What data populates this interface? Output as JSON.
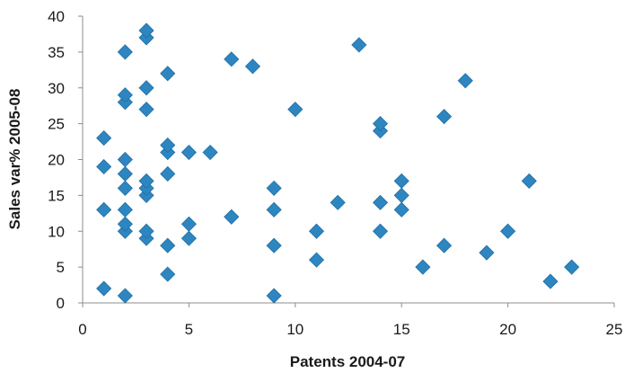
{
  "chart_data": {
    "type": "scatter",
    "xlabel": "Patents 2004-07",
    "ylabel": "Sales var% 2005-08",
    "xlim": [
      0,
      25
    ],
    "ylim": [
      0,
      40
    ],
    "x_ticks": [
      "0",
      "5",
      "10",
      "15",
      "20",
      "25"
    ],
    "y_ticks": [
      "0",
      "5",
      "10",
      "15",
      "20",
      "25",
      "30",
      "35",
      "40"
    ],
    "grid": false,
    "legend": "none",
    "marker": "diamond",
    "marker_color": "#2e86c1",
    "series": [
      {
        "points": [
          {
            "x": 1,
            "y": 2
          },
          {
            "x": 1,
            "y": 13
          },
          {
            "x": 1,
            "y": 19
          },
          {
            "x": 1,
            "y": 23
          },
          {
            "x": 2,
            "y": 1
          },
          {
            "x": 2,
            "y": 10
          },
          {
            "x": 2,
            "y": 11
          },
          {
            "x": 2,
            "y": 13
          },
          {
            "x": 2,
            "y": 16
          },
          {
            "x": 2,
            "y": 18
          },
          {
            "x": 2,
            "y": 20
          },
          {
            "x": 2,
            "y": 28
          },
          {
            "x": 2,
            "y": 29
          },
          {
            "x": 2,
            "y": 35
          },
          {
            "x": 3,
            "y": 9
          },
          {
            "x": 3,
            "y": 10
          },
          {
            "x": 3,
            "y": 15
          },
          {
            "x": 3,
            "y": 16
          },
          {
            "x": 3,
            "y": 17
          },
          {
            "x": 3,
            "y": 27
          },
          {
            "x": 3,
            "y": 30
          },
          {
            "x": 3,
            "y": 37
          },
          {
            "x": 3,
            "y": 38
          },
          {
            "x": 4,
            "y": 4
          },
          {
            "x": 4,
            "y": 8
          },
          {
            "x": 4,
            "y": 18
          },
          {
            "x": 4,
            "y": 21
          },
          {
            "x": 4,
            "y": 22
          },
          {
            "x": 4,
            "y": 32
          },
          {
            "x": 5,
            "y": 9
          },
          {
            "x": 5,
            "y": 11
          },
          {
            "x": 5,
            "y": 21
          },
          {
            "x": 6,
            "y": 21
          },
          {
            "x": 7,
            "y": 12
          },
          {
            "x": 7,
            "y": 34
          },
          {
            "x": 8,
            "y": 33
          },
          {
            "x": 9,
            "y": 1
          },
          {
            "x": 9,
            "y": 8
          },
          {
            "x": 9,
            "y": 13
          },
          {
            "x": 9,
            "y": 16
          },
          {
            "x": 10,
            "y": 27
          },
          {
            "x": 11,
            "y": 6
          },
          {
            "x": 11,
            "y": 10
          },
          {
            "x": 12,
            "y": 14
          },
          {
            "x": 13,
            "y": 36
          },
          {
            "x": 14,
            "y": 10
          },
          {
            "x": 14,
            "y": 14
          },
          {
            "x": 14,
            "y": 24
          },
          {
            "x": 14,
            "y": 25
          },
          {
            "x": 15,
            "y": 13
          },
          {
            "x": 15,
            "y": 15
          },
          {
            "x": 15,
            "y": 17
          },
          {
            "x": 16,
            "y": 5
          },
          {
            "x": 17,
            "y": 8
          },
          {
            "x": 17,
            "y": 26
          },
          {
            "x": 18,
            "y": 31
          },
          {
            "x": 19,
            "y": 7
          },
          {
            "x": 20,
            "y": 10
          },
          {
            "x": 21,
            "y": 17
          },
          {
            "x": 22,
            "y": 3
          },
          {
            "x": 23,
            "y": 5
          }
        ]
      }
    ]
  }
}
